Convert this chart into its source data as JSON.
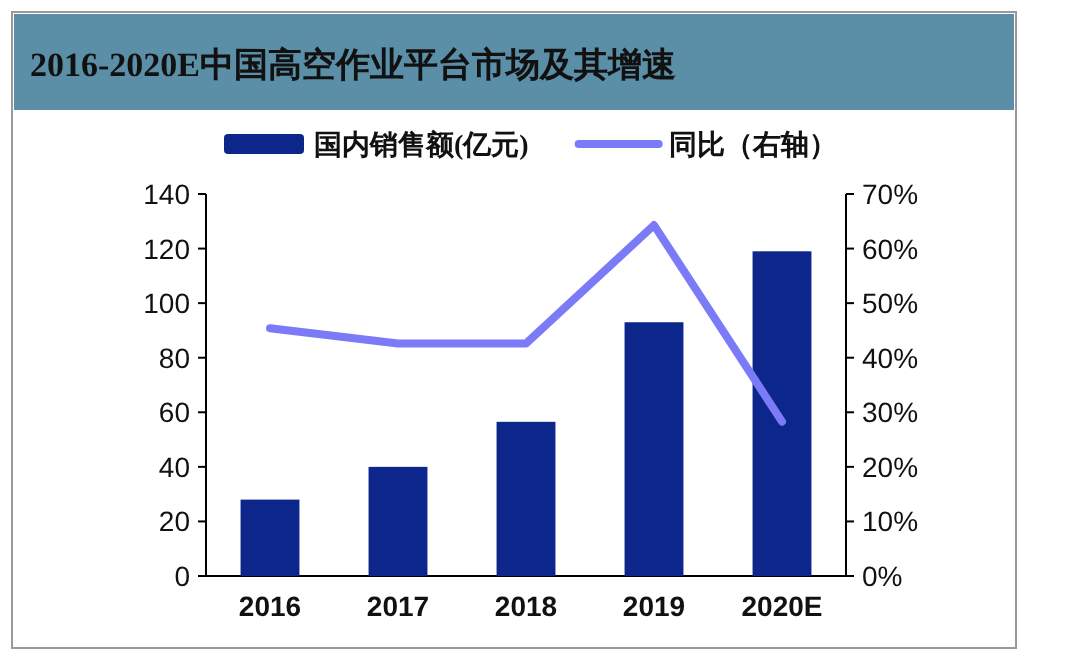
{
  "chart_data": {
    "type": "bar",
    "title": "2016-2020E中国高空作业平台市场及其增速",
    "categories": [
      "2016",
      "2017",
      "2018",
      "2019",
      "2020E"
    ],
    "series": [
      {
        "name": "国内销售额(亿元)",
        "color": "#0d268c",
        "values": [
          28,
          40,
          56.5,
          93,
          119
        ]
      },
      {
        "name": "同比（右轴）",
        "type": "line",
        "axis": "y2",
        "color": "#7b7bf7",
        "values": [
          45.4,
          42.6,
          42.6,
          64.3,
          28.3
        ]
      }
    ],
    "ylim": [
      0,
      140
    ],
    "yticks": [
      0,
      20,
      40,
      60,
      80,
      100,
      120,
      140
    ],
    "y2lim": [
      0,
      70
    ],
    "y2ticks": [
      {
        "value": 0,
        "label": "0%"
      },
      {
        "value": 10,
        "label": "10%"
      },
      {
        "value": 20,
        "label": "20%"
      },
      {
        "value": 30,
        "label": "30%"
      },
      {
        "value": 40,
        "label": "40%"
      },
      {
        "value": 50,
        "label": "50%"
      },
      {
        "value": 60,
        "label": "60%"
      },
      {
        "value": 70,
        "label": "70%"
      }
    ],
    "legend": "top",
    "grid": false
  }
}
